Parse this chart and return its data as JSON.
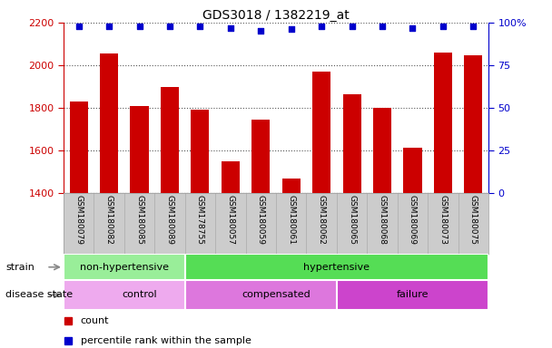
{
  "title": "GDS3018 / 1382219_at",
  "samples": [
    "GSM180079",
    "GSM180082",
    "GSM180085",
    "GSM180089",
    "GSM178755",
    "GSM180057",
    "GSM180059",
    "GSM180061",
    "GSM180062",
    "GSM180065",
    "GSM180068",
    "GSM180069",
    "GSM180073",
    "GSM180075"
  ],
  "counts": [
    1830,
    2055,
    1810,
    1900,
    1790,
    1550,
    1745,
    1470,
    1970,
    1865,
    1800,
    1615,
    2060,
    2045
  ],
  "percentile_ranks": [
    98,
    98,
    98,
    98,
    98,
    97,
    95,
    96,
    98,
    98,
    98,
    97,
    98,
    98
  ],
  "bar_color": "#cc0000",
  "dot_color": "#0000cc",
  "ylim_left": [
    1400,
    2200
  ],
  "ylim_right": [
    0,
    100
  ],
  "yticks_left": [
    1400,
    1600,
    1800,
    2000,
    2200
  ],
  "yticks_right": [
    0,
    25,
    50,
    75,
    100
  ],
  "strain_groups": [
    {
      "label": "non-hypertensive",
      "start": 0,
      "end": 3,
      "color": "#99ee99"
    },
    {
      "label": "hypertensive",
      "start": 4,
      "end": 13,
      "color": "#55dd55"
    }
  ],
  "disease_groups": [
    {
      "label": "control",
      "start": 0,
      "end": 4,
      "color": "#eeaaee"
    },
    {
      "label": "compensated",
      "start": 4,
      "end": 9,
      "color": "#dd77dd"
    },
    {
      "label": "failure",
      "start": 9,
      "end": 13,
      "color": "#cc44cc"
    }
  ],
  "tick_color_left": "#cc0000",
  "tick_color_right": "#0000cc",
  "grid_linestyle": "dotted",
  "bg_color": "#ffffff",
  "plot_bg_color": "#ffffff",
  "xtick_bg": "#cccccc"
}
